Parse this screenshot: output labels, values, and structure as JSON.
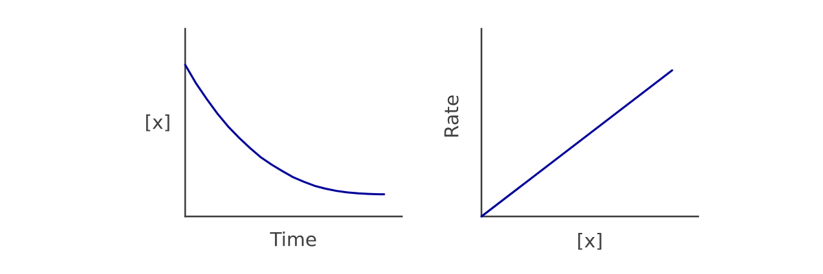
{
  "chart_data": [
    {
      "type": "line",
      "xlabel": "Time",
      "ylabel": "[x]",
      "xlim": [
        0,
        10
      ],
      "ylim": [
        0,
        10
      ],
      "grid": false,
      "series": [
        {
          "color": "#000099",
          "x": [
            0,
            0.5,
            1,
            1.5,
            2,
            2.5,
            3,
            3.5,
            4,
            4.5,
            5,
            5.5,
            6,
            6.5,
            7,
            7.5,
            8,
            8.5,
            9,
            9.2
          ],
          "y": [
            8.2,
            7.2,
            6.35,
            5.55,
            4.85,
            4.25,
            3.7,
            3.2,
            2.8,
            2.45,
            2.12,
            1.87,
            1.65,
            1.5,
            1.38,
            1.3,
            1.25,
            1.22,
            1.2,
            1.2
          ]
        }
      ]
    },
    {
      "type": "line",
      "xlabel": "[x]",
      "ylabel": "Rate",
      "xlim": [
        0,
        10
      ],
      "ylim": [
        0,
        10
      ],
      "grid": false,
      "series": [
        {
          "color": "#000099",
          "x": [
            0,
            8.8
          ],
          "y": [
            0,
            7.9
          ]
        }
      ]
    }
  ]
}
